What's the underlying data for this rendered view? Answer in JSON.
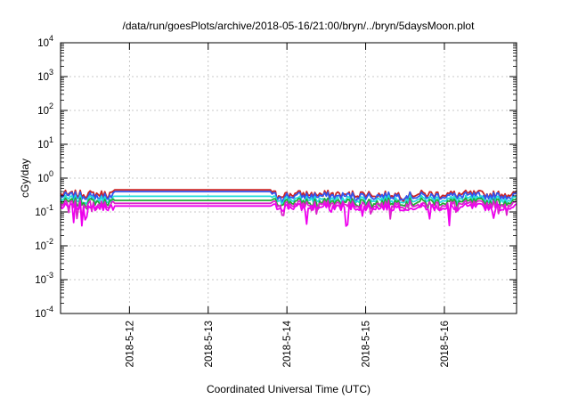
{
  "chart_data": {
    "type": "line",
    "title": "/data/run/goesPlots/archive/2018-05-16/21:00/bryn/../bryn/5daysMoon.plot",
    "xlabel": "Coordinated Universal Time (UTC)",
    "ylabel": "cGy/day",
    "y_scale": "log",
    "ylim": [
      0.0001,
      10000
    ],
    "y_ticks": [
      {
        "value": 0.0001,
        "base": "10",
        "exp": "-4"
      },
      {
        "value": 0.001,
        "base": "10",
        "exp": "-3"
      },
      {
        "value": 0.01,
        "base": "10",
        "exp": "-2"
      },
      {
        "value": 0.1,
        "base": "10",
        "exp": "-1"
      },
      {
        "value": 1,
        "base": "10",
        "exp": "0"
      },
      {
        "value": 10,
        "base": "10",
        "exp": "1"
      },
      {
        "value": 100,
        "base": "10",
        "exp": "2"
      },
      {
        "value": 1000,
        "base": "10",
        "exp": "3"
      },
      {
        "value": 10000,
        "base": "10",
        "exp": "4"
      }
    ],
    "xlim": [
      "2018-05-11T03:00",
      "2018-05-16T22:00"
    ],
    "x_ticks": [
      {
        "value": "2018-05-12T00:00",
        "label": "2018-5-12"
      },
      {
        "value": "2018-05-13T00:00",
        "label": "2018-5-13"
      },
      {
        "value": "2018-05-14T00:00",
        "label": "2018-5-14"
      },
      {
        "value": "2018-05-15T00:00",
        "label": "2018-5-15"
      },
      {
        "value": "2018-05-16T00:00",
        "label": "2018-5-16"
      }
    ],
    "grid": true,
    "series": [
      {
        "color": "#cc2222",
        "base_level": 0.34,
        "flat_level": 0.45,
        "noise_down": 0.25
      },
      {
        "color": "#3355ee",
        "base_level": 0.3,
        "flat_level": 0.4,
        "noise_down": 0.3
      },
      {
        "color": "#22dddd",
        "base_level": 0.24,
        "flat_level": 0.29,
        "noise_down": 0.35
      },
      {
        "color": "#22aa33",
        "base_level": 0.2,
        "flat_level": 0.22,
        "noise_down": 0.35
      },
      {
        "color": "#dd22cc",
        "base_level": 0.17,
        "flat_level": 0.18,
        "noise_down": 0.6
      },
      {
        "color": "#ee00ee",
        "base_level": 0.14,
        "flat_level": 0.15,
        "noise_down": 0.75
      }
    ],
    "flat_gap": [
      "2018-05-11T19:30",
      "2018-05-13T19:00"
    ],
    "sample_interval_hours": 0.5
  }
}
